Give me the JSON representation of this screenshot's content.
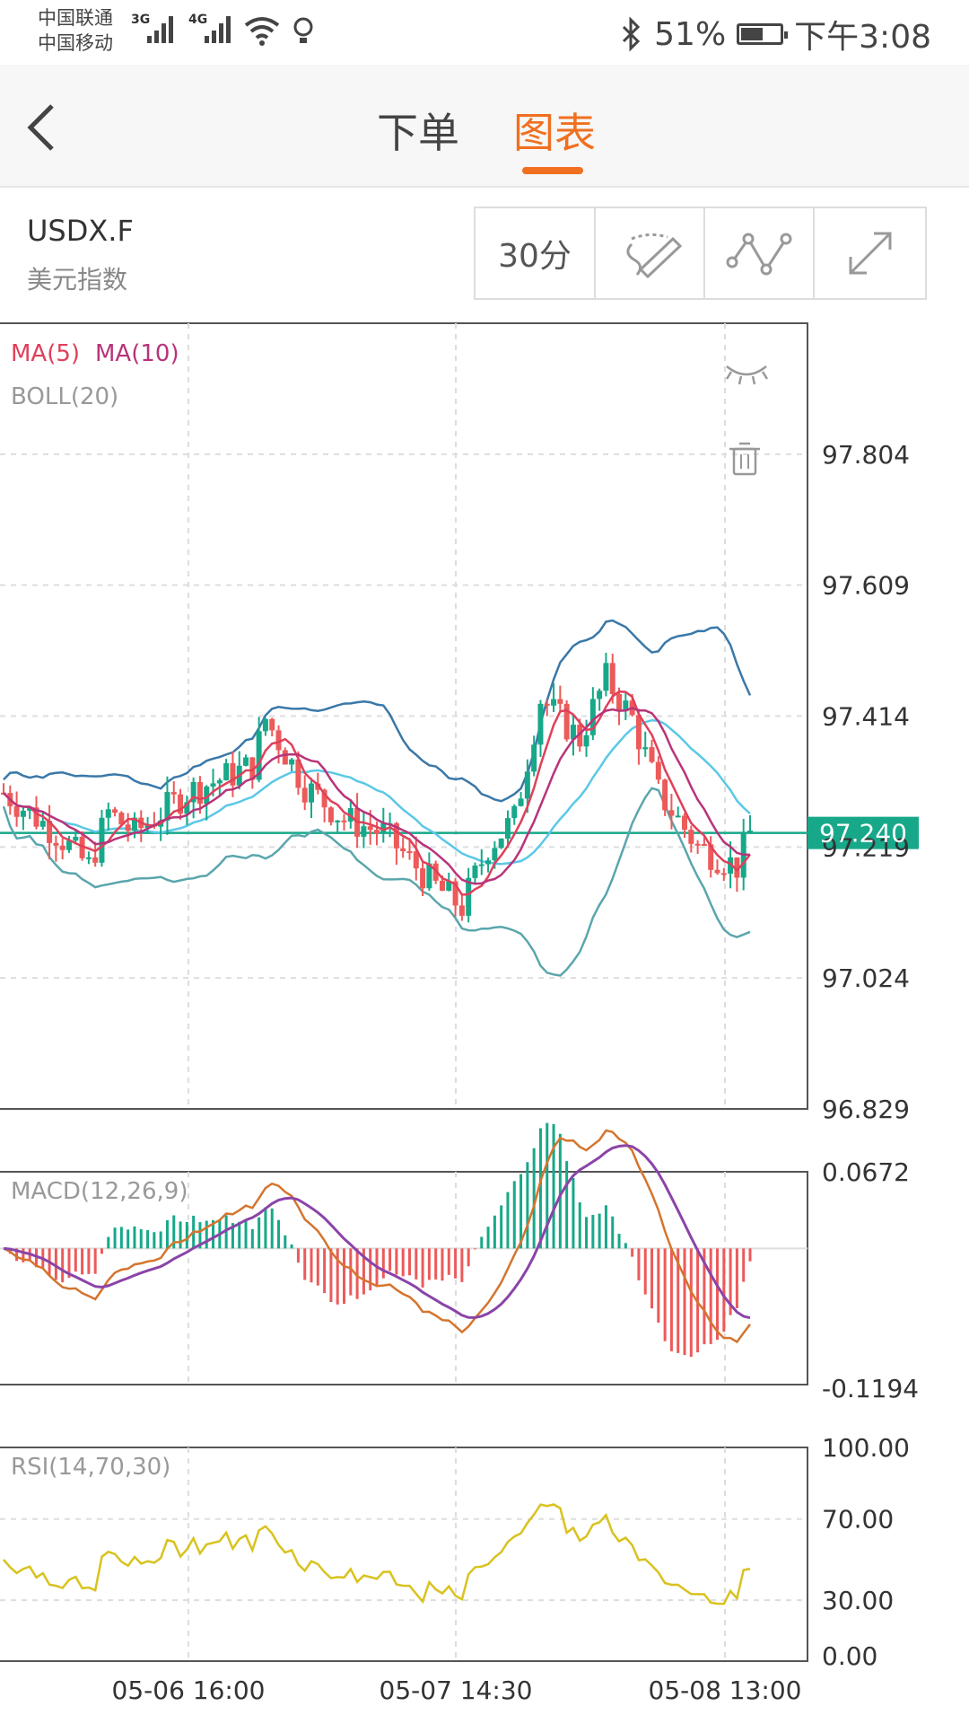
{
  "status_bar": {
    "carrier1": "中国联通",
    "carrier2": "中国移动",
    "net1": "3G",
    "net2": "4G",
    "battery_pct": "51%",
    "battery_level": 0.51,
    "time": "下午3:08"
  },
  "nav": {
    "tabs": [
      {
        "label": "下单",
        "active": false
      },
      {
        "label": "图表",
        "active": true
      }
    ],
    "accent_color": "#f07020"
  },
  "instrument": {
    "symbol": "USDX.F",
    "name": "美元指数"
  },
  "toolbar": {
    "timeframe": "30分",
    "icons": [
      "draw-icon",
      "line-indicator-icon",
      "fullscreen-icon"
    ]
  },
  "indicators": {
    "ma": [
      "MA(5)",
      "MA(10)"
    ],
    "boll": "BOLL(20)",
    "macd": "MACD(12,26,9)",
    "rsi": "RSI(14,70,30)"
  },
  "chart_data": [
    {
      "type": "candlestick",
      "price_axis": [
        "97.804",
        "97.609",
        "97.414",
        "97.219",
        "97.024",
        "96.829"
      ],
      "ylim": [
        96.829,
        97.999
      ],
      "current_price": "97.240",
      "colors": {
        "up": "#17a88a",
        "down": "#ec5a5a",
        "ma5": "#e0405a",
        "ma10": "#b8347a",
        "boll_mid": "#5bc8e6",
        "boll_up": "#3a78a8",
        "boll_low": "#5aa6ad",
        "price_line": "#17a88a"
      },
      "x_labels": [
        "05-06 16:00",
        "05-07 14:30",
        "05-08 13:00"
      ]
    },
    {
      "type": "macd",
      "axis": [
        "0.0672",
        "-0.1194"
      ],
      "ylim": [
        -0.1194,
        0.0672
      ],
      "colors": {
        "dif": "#d4752e",
        "dea": "#8a44a8",
        "hist_pos": "#17a88a",
        "hist_neg": "#ec5a5a"
      }
    },
    {
      "type": "rsi",
      "axis": [
        "100.00",
        "70.00",
        "30.00",
        "0.00"
      ],
      "ylim": [
        0,
        100
      ],
      "colors": {
        "rsi": "#d9c21e"
      }
    }
  ]
}
